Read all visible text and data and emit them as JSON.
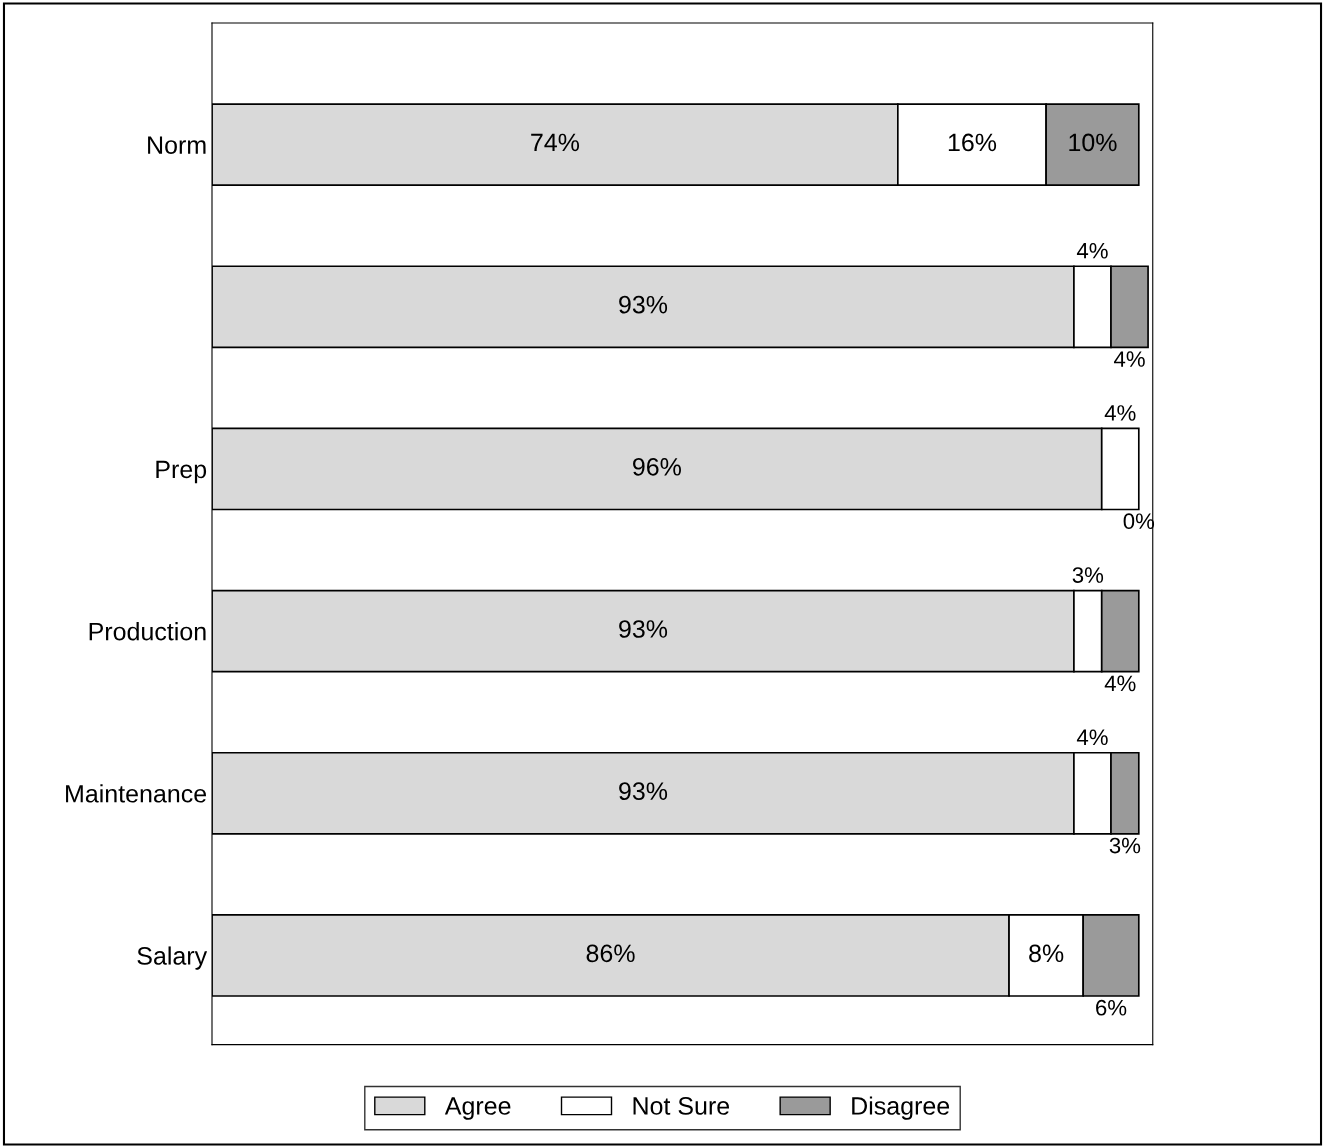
{
  "chart_data": {
    "type": "bar",
    "orientation": "horizontal",
    "stacked": true,
    "categories": [
      "Norm",
      null,
      "Prep",
      "Production",
      "Maintenance",
      "Salary"
    ],
    "series": [
      {
        "name": "Agree",
        "color": "#d9d9d9",
        "values": [
          74,
          93,
          96,
          93,
          93,
          86
        ],
        "value_labels": [
          "74%",
          "93%",
          "96%",
          "93%",
          "93%",
          "86%"
        ]
      },
      {
        "name": "Not Sure",
        "color": "#ffffff",
        "values": [
          16,
          4,
          4,
          3,
          4,
          8
        ],
        "value_labels": [
          "16%",
          "4%",
          "4%",
          "3%",
          "4%",
          "8%"
        ]
      },
      {
        "name": "Disagree",
        "color": "#9a9a9a",
        "values": [
          10,
          4,
          0,
          4,
          3,
          6
        ],
        "value_labels": [
          "10%",
          "4%",
          "0%",
          "4%",
          "3%",
          "6%"
        ]
      }
    ],
    "legend": "bottom",
    "grid": false
  }
}
